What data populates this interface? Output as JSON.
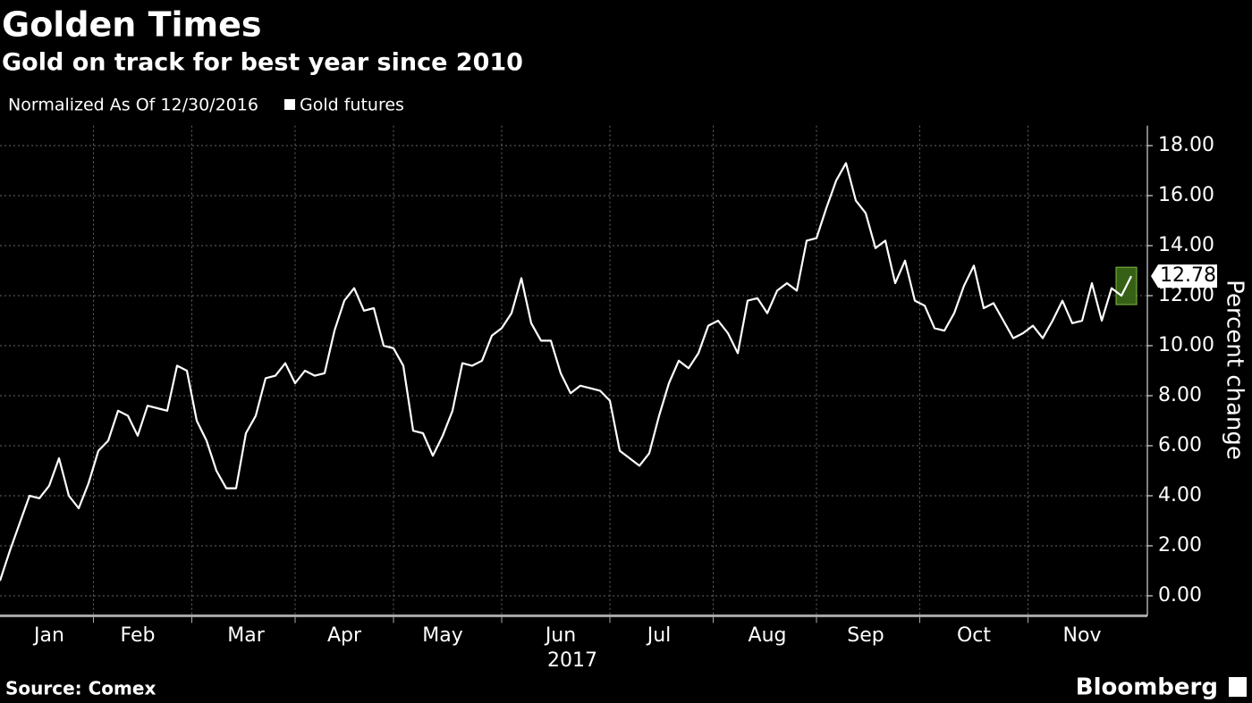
{
  "chart_data": {
    "type": "line",
    "title": "Golden Times",
    "subtitle": "Gold on track for best year since 2010",
    "note": "Normalized As Of 12/30/2016",
    "y_label": "Percent change",
    "x_sublabel": "2017",
    "source": "Source: Comex",
    "brand": "Bloomberg",
    "categories": [
      null,
      null,
      null,
      null,
      null,
      "Jan",
      null,
      null,
      null,
      null,
      null,
      null,
      null,
      null,
      "Feb",
      null,
      null,
      null,
      null,
      null,
      null,
      null,
      null,
      null,
      null,
      "Mar",
      null,
      null,
      null,
      null,
      null,
      null,
      null,
      null,
      null,
      "Apr",
      null,
      null,
      null,
      null,
      null,
      null,
      null,
      null,
      null,
      "May",
      null,
      null,
      null,
      null,
      null,
      null,
      null,
      null,
      null,
      null,
      null,
      "Jun",
      null,
      null,
      null,
      null,
      null,
      null,
      null,
      null,
      null,
      "Jul",
      null,
      null,
      null,
      null,
      null,
      null,
      null,
      null,
      null,
      null,
      "Aug",
      null,
      null,
      null,
      null,
      null,
      null,
      null,
      null,
      null,
      "Sep",
      null,
      null,
      null,
      null,
      null,
      null,
      null,
      null,
      null,
      null,
      "Oct",
      null,
      null,
      null,
      null,
      null,
      null,
      null,
      null,
      null,
      null,
      "Nov",
      null,
      null,
      null,
      null,
      null
    ],
    "series": [
      {
        "name": "Gold futures",
        "color": "#ffffff",
        "values": [
          0.6,
          1.8,
          2.9,
          4.0,
          3.9,
          4.4,
          5.5,
          4.0,
          3.5,
          4.5,
          5.8,
          6.2,
          7.4,
          7.2,
          6.4,
          7.6,
          7.5,
          7.4,
          9.2,
          9.0,
          7.0,
          6.2,
          5.0,
          4.3,
          4.3,
          6.5,
          7.2,
          8.7,
          8.8,
          9.3,
          8.5,
          9.0,
          8.8,
          8.9,
          10.6,
          11.8,
          12.3,
          11.4,
          11.5,
          10.0,
          9.9,
          9.2,
          6.6,
          6.5,
          5.6,
          6.4,
          7.4,
          9.3,
          9.2,
          9.4,
          10.4,
          10.7,
          11.3,
          12.7,
          10.9,
          10.2,
          10.2,
          8.9,
          8.1,
          8.4,
          8.3,
          8.2,
          7.8,
          5.8,
          5.5,
          5.2,
          5.7,
          7.2,
          8.5,
          9.4,
          9.1,
          9.7,
          10.8,
          11.0,
          10.5,
          9.7,
          11.8,
          11.9,
          11.3,
          12.2,
          12.5,
          12.2,
          14.2,
          14.3,
          15.5,
          16.6,
          17.3,
          15.8,
          15.3,
          13.9,
          14.2,
          12.5,
          13.4,
          11.8,
          11.6,
          10.7,
          10.6,
          11.3,
          12.4,
          13.2,
          11.5,
          11.7,
          11.0,
          10.3,
          10.5,
          10.8,
          10.3,
          11.0,
          11.8,
          10.9,
          11.0,
          12.5,
          11.0,
          12.3,
          12.0,
          12.78
        ]
      }
    ],
    "ylim": [
      -0.8,
      18.8
    ],
    "yticks": [
      {
        "value": 0,
        "label": "0.00"
      },
      {
        "value": 2,
        "label": "2.00"
      },
      {
        "value": 4,
        "label": "4.00"
      },
      {
        "value": 6,
        "label": "6.00"
      },
      {
        "value": 8,
        "label": "8.00"
      },
      {
        "value": 10,
        "label": "10.00"
      },
      {
        "value": 12,
        "label": "12.00"
      },
      {
        "value": 14,
        "label": "14.00"
      },
      {
        "value": 16,
        "label": "16.00"
      },
      {
        "value": 18,
        "label": "18.00"
      }
    ],
    "grid": true
  }
}
